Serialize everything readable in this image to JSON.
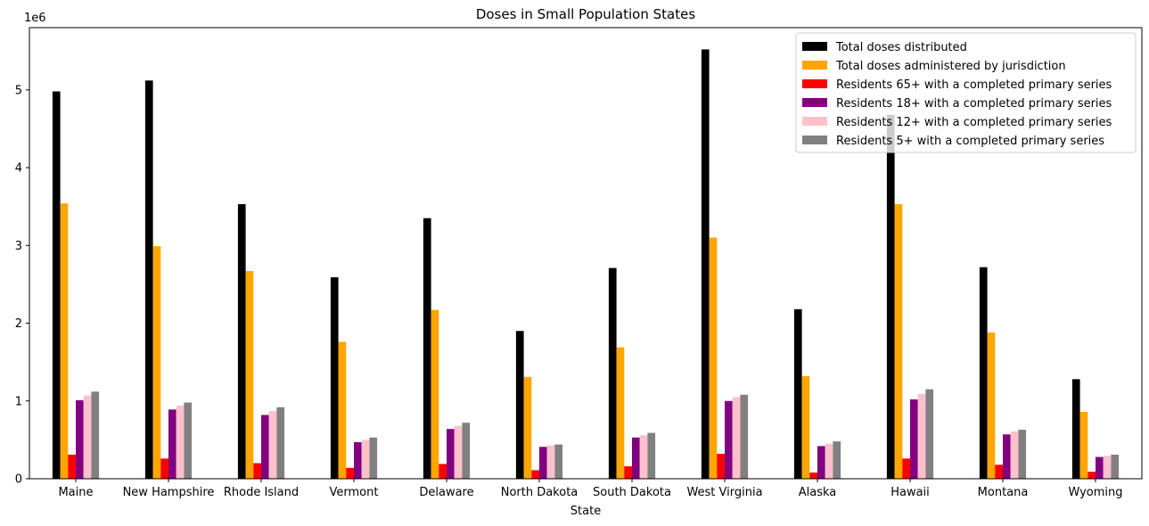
{
  "chart_data": {
    "type": "bar",
    "title": "Doses in Small Population States",
    "xlabel": "State",
    "ylabel": "",
    "y_offset_label": "1e6",
    "ylim": [
      0,
      5800000
    ],
    "yticks": [
      0,
      1000000,
      2000000,
      3000000,
      4000000,
      5000000
    ],
    "ytick_labels": [
      "0",
      "1",
      "2",
      "3",
      "4",
      "5"
    ],
    "grid": false,
    "legend_position": "top-right",
    "categories": [
      "Maine",
      "New Hampshire",
      "Rhode Island",
      "Vermont",
      "Delaware",
      "North Dakota",
      "South Dakota",
      "West Virginia",
      "Alaska",
      "Hawaii",
      "Montana",
      "Wyoming"
    ],
    "series": [
      {
        "name": "Total doses distributed",
        "color": "#000000",
        "values": [
          4980000,
          5120000,
          3530000,
          2590000,
          3350000,
          1900000,
          2710000,
          5520000,
          2180000,
          4680000,
          2720000,
          1280000
        ]
      },
      {
        "name": "Total doses administered by jurisdiction",
        "color": "#ffa500",
        "values": [
          3540000,
          2990000,
          2670000,
          1760000,
          2170000,
          1310000,
          1690000,
          3100000,
          1320000,
          3530000,
          1880000,
          860000
        ]
      },
      {
        "name": "Residents 65+ with a completed primary series",
        "color": "#ff0000",
        "values": [
          310000,
          260000,
          200000,
          140000,
          190000,
          110000,
          160000,
          320000,
          80000,
          260000,
          180000,
          90000
        ]
      },
      {
        "name": "Residents 18+ with a completed primary series",
        "color": "#800080",
        "values": [
          1010000,
          890000,
          820000,
          470000,
          640000,
          410000,
          530000,
          1000000,
          420000,
          1020000,
          570000,
          280000
        ]
      },
      {
        "name": "Residents 12+ with a completed primary series",
        "color": "#ffc0cb",
        "values": [
          1070000,
          940000,
          870000,
          500000,
          680000,
          430000,
          560000,
          1050000,
          450000,
          1090000,
          610000,
          295000
        ]
      },
      {
        "name": "Residents 5+ with a completed primary series",
        "color": "#808080",
        "values": [
          1120000,
          980000,
          920000,
          530000,
          720000,
          440000,
          590000,
          1080000,
          480000,
          1150000,
          630000,
          310000
        ]
      }
    ]
  }
}
